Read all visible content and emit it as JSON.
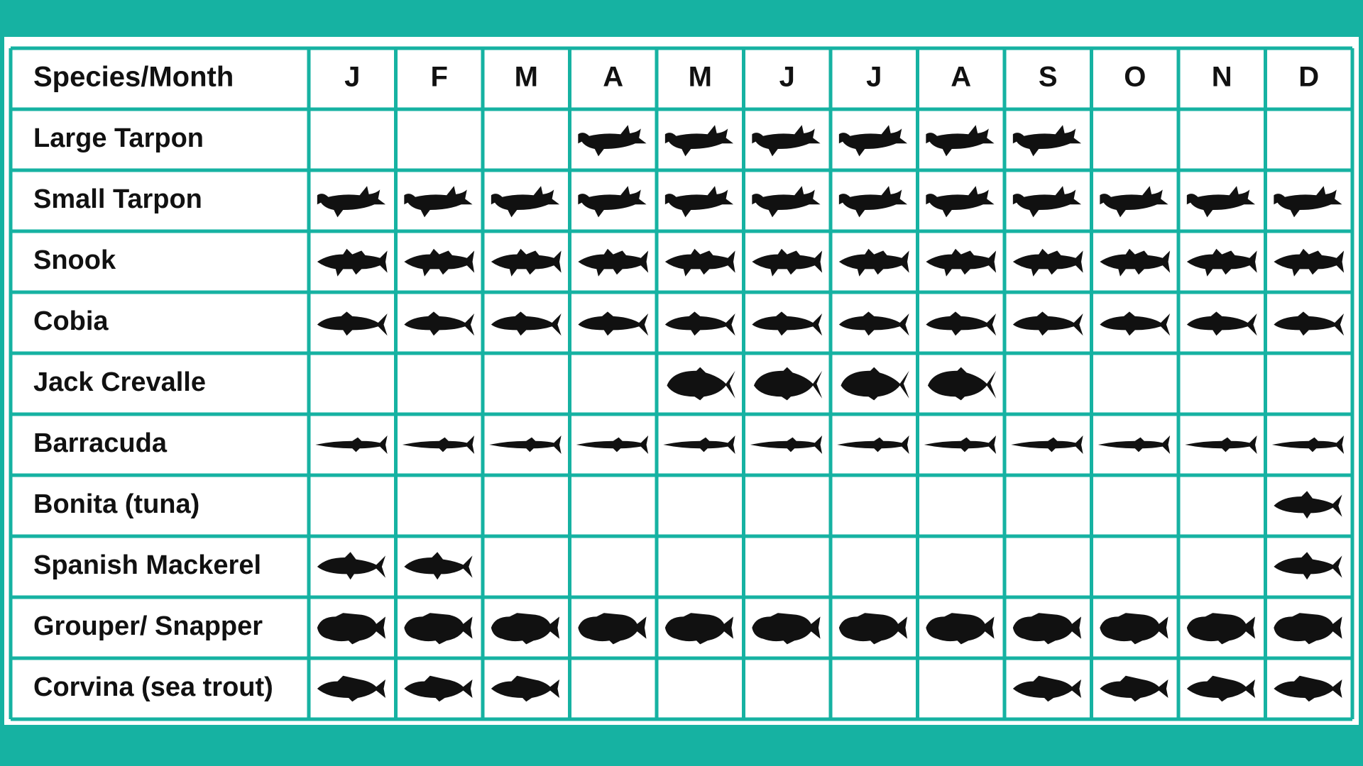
{
  "table": {
    "header": [
      "Species/Month",
      "J",
      "F",
      "M",
      "A",
      "M",
      "J",
      "J",
      "A",
      "S",
      "O",
      "N",
      "D"
    ],
    "rows": [
      {
        "species": "Large Tarpon",
        "months": [
          0,
          0,
          0,
          1,
          1,
          1,
          1,
          1,
          1,
          0,
          0,
          0
        ]
      },
      {
        "species": "Small Tarpon",
        "months": [
          1,
          1,
          1,
          1,
          1,
          1,
          1,
          1,
          1,
          1,
          1,
          1
        ]
      },
      {
        "species": "Snook",
        "months": [
          1,
          1,
          1,
          1,
          1,
          1,
          1,
          1,
          1,
          1,
          1,
          1
        ]
      },
      {
        "species": "Cobia",
        "months": [
          1,
          1,
          1,
          1,
          1,
          1,
          1,
          1,
          1,
          1,
          1,
          1
        ]
      },
      {
        "species": "Jack Crevalle",
        "months": [
          0,
          0,
          0,
          0,
          1,
          1,
          1,
          1,
          0,
          0,
          0,
          0
        ]
      },
      {
        "species": "Barracuda",
        "months": [
          1,
          1,
          1,
          1,
          1,
          1,
          1,
          1,
          1,
          1,
          1,
          1
        ]
      },
      {
        "species": "Bonita (tuna)",
        "months": [
          0,
          0,
          0,
          0,
          0,
          0,
          0,
          0,
          0,
          0,
          0,
          1
        ]
      },
      {
        "species": "Spanish Mackerel",
        "months": [
          1,
          1,
          0,
          0,
          0,
          0,
          0,
          0,
          0,
          0,
          0,
          1
        ]
      },
      {
        "species": "Grouper/ Snapper",
        "months": [
          1,
          1,
          1,
          1,
          1,
          1,
          1,
          1,
          1,
          1,
          1,
          1
        ]
      },
      {
        "species": "Corvina (sea trout)",
        "months": [
          1,
          1,
          1,
          0,
          0,
          0,
          0,
          0,
          1,
          1,
          1,
          1
        ]
      }
    ]
  }
}
